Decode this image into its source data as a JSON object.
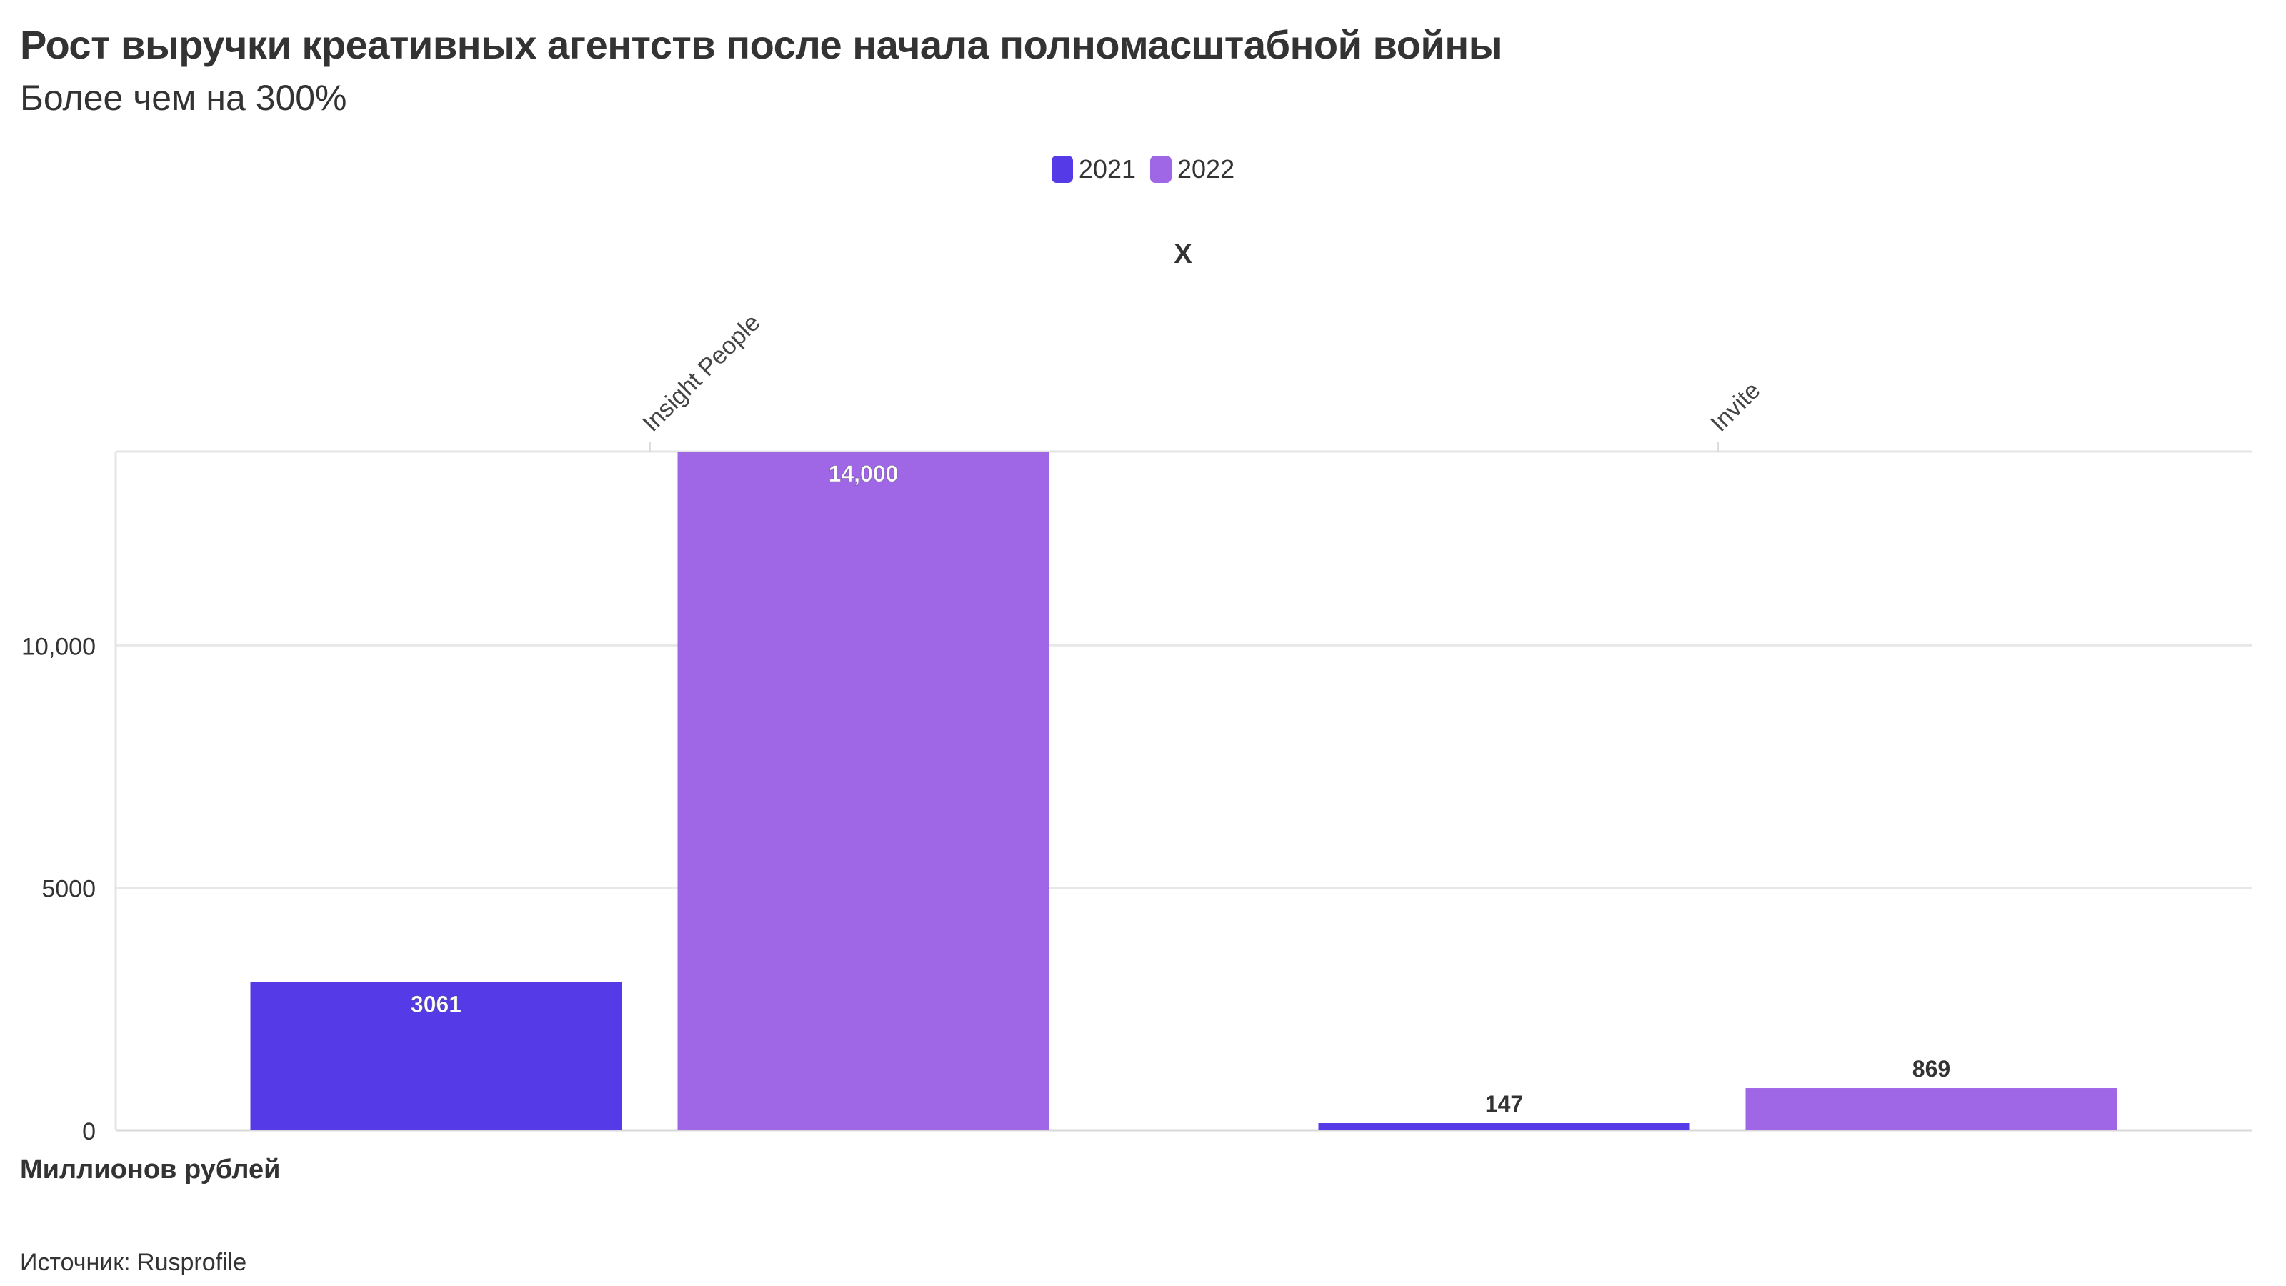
{
  "header": {
    "title": "Рост выручки креативных агентств после начала полномасштабной войны",
    "subtitle": "Более чем на 300%"
  },
  "footer": {
    "ylabel_note": "Миллионов рублей",
    "source": "Источник: Rusprofile"
  },
  "chart_data": {
    "type": "bar",
    "xlabel": "X",
    "categories": [
      "Insight People",
      "Invite"
    ],
    "series": [
      {
        "name": "2021",
        "color": "#553be8",
        "values": [
          3061,
          147
        ],
        "labels": [
          "3061",
          "147"
        ]
      },
      {
        "name": "2022",
        "color": "#9f66e6",
        "values": [
          14000,
          869
        ],
        "labels": [
          "14,000",
          "869"
        ]
      }
    ],
    "ylim": [
      0,
      14000
    ],
    "yticks": [
      0,
      5000,
      10000
    ],
    "ytick_labels": [
      "0",
      "5000",
      "10,000"
    ],
    "grid": true,
    "legend_position": "top-center",
    "x_axis_position": "top"
  }
}
